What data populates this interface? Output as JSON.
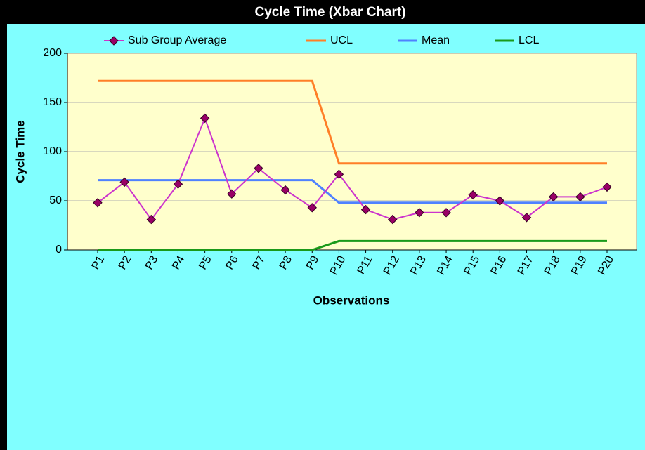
{
  "chart_data": {
    "type": "line",
    "title": "Cycle Time (Xbar Chart)",
    "x_label": "Observations",
    "y_label": "Cycle Time",
    "categories": [
      "P1",
      "P2",
      "P3",
      "P4",
      "P5",
      "P6",
      "P7",
      "P8",
      "P9",
      "P10",
      "P11",
      "P12",
      "P13",
      "P14",
      "P15",
      "P16",
      "P17",
      "P18",
      "P19",
      "P20"
    ],
    "series": [
      {
        "name": "Sub Group Average",
        "color": "#cc33cc",
        "marker": "diamond",
        "values": [
          48,
          69,
          31,
          67,
          134,
          57,
          83,
          61,
          43,
          77,
          41,
          31,
          38,
          38,
          56,
          50,
          33,
          54,
          54,
          64
        ]
      },
      {
        "name": "UCL",
        "color": "#ff7f27",
        "values": [
          172,
          172,
          172,
          172,
          172,
          172,
          172,
          172,
          172,
          88,
          88,
          88,
          88,
          88,
          88,
          88,
          88,
          88,
          88,
          88
        ]
      },
      {
        "name": "Mean",
        "color": "#4f81ff",
        "values": [
          71,
          71,
          71,
          71,
          71,
          71,
          71,
          71,
          71,
          48,
          48,
          48,
          48,
          48,
          48,
          48,
          48,
          48,
          48,
          48
        ]
      },
      {
        "name": "LCL",
        "color": "#1a9a1a",
        "values": [
          0,
          0,
          0,
          0,
          0,
          0,
          0,
          0,
          0,
          9,
          9,
          9,
          9,
          9,
          9,
          9,
          9,
          9,
          9,
          9
        ]
      }
    ],
    "ylim": [
      0,
      200
    ],
    "yticks": [
      0,
      50,
      100,
      150,
      200
    ],
    "grid": true,
    "legend": "top"
  }
}
